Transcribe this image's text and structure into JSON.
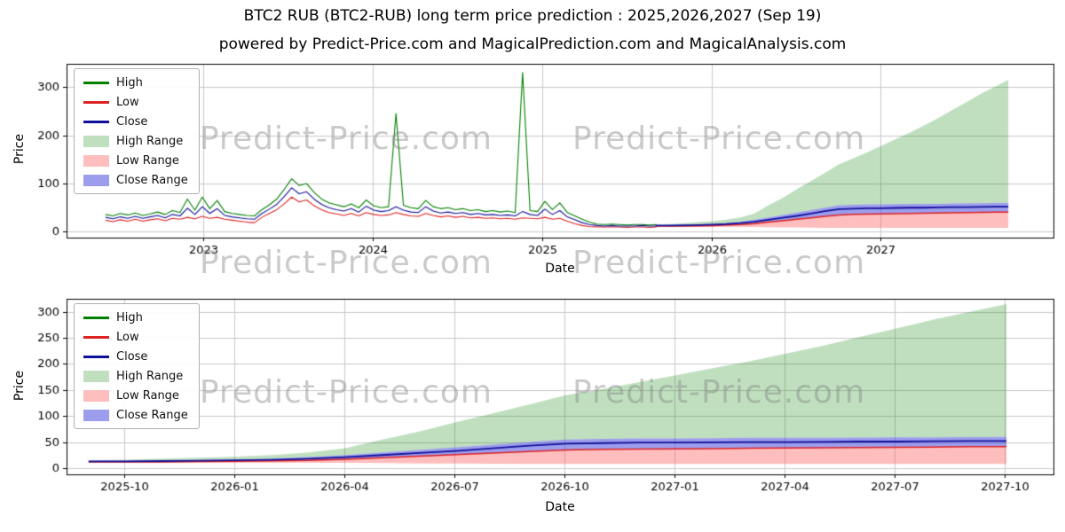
{
  "title": "BTC2 RUB (BTC2-RUB) long term price prediction : 2025,2026,2027 (Sep 19)",
  "subtitle": "powered by Predict-Price.com and MagicalPrediction.com and MagicalAnalysis.com",
  "watermark": {
    "text": "Predict-Price.com"
  },
  "colors": {
    "high_line": "#008000",
    "low_line": "#dd2222",
    "close_line": "#10109b",
    "high_band": "rgba(0,128,0,0.25)",
    "low_band": "rgba(255,70,70,0.35)",
    "close_band": "rgba(60,60,220,0.5)",
    "grid": "#c9c9c9",
    "frame": "#000000"
  },
  "legend": [
    {
      "label": "High",
      "type": "line",
      "color": "#008000"
    },
    {
      "label": "Low",
      "type": "line",
      "color": "#dd2222"
    },
    {
      "label": "Close",
      "type": "line",
      "color": "#10109b"
    },
    {
      "label": "High Range",
      "type": "band",
      "color": "rgba(0,128,0,0.25)"
    },
    {
      "label": "Low Range",
      "type": "band",
      "color": "rgba(255,70,70,0.35)"
    },
    {
      "label": "Close Range",
      "type": "band",
      "color": "rgba(60,60,220,0.5)"
    }
  ],
  "chart_data": {
    "type": "line",
    "series": {
      "historical": {
        "x": {
          "start": 2022.42,
          "step": 0.044,
          "count": 75
        },
        "high": [
          36,
          33,
          38,
          35,
          39,
          34,
          37,
          41,
          36,
          44,
          40,
          68,
          45,
          72,
          48,
          65,
          42,
          38,
          36,
          34,
          33,
          46,
          56,
          68,
          88,
          110,
          96,
          100,
          82,
          68,
          60,
          56,
          52,
          58,
          50,
          66,
          54,
          50,
          52,
          245,
          55,
          50,
          48,
          65,
          52,
          48,
          50,
          46,
          48,
          44,
          46,
          42,
          44,
          41,
          43,
          40,
          330,
          44,
          42,
          63,
          46,
          60,
          40,
          33,
          26,
          20,
          16,
          15,
          16,
          15,
          14,
          15,
          15,
          14,
          15
        ],
        "low": [
          24,
          21,
          25,
          22,
          26,
          22,
          25,
          27,
          23,
          28,
          26,
          30,
          27,
          32,
          28,
          30,
          26,
          24,
          22,
          20,
          19,
          30,
          38,
          46,
          58,
          72,
          62,
          66,
          54,
          46,
          40,
          37,
          34,
          38,
          33,
          40,
          36,
          34,
          35,
          40,
          36,
          33,
          32,
          38,
          34,
          31,
          33,
          30,
          32,
          29,
          30,
          28,
          29,
          27,
          28,
          26,
          29,
          28,
          27,
          30,
          26,
          28,
          22,
          17,
          13,
          11,
          10,
          10,
          10,
          10,
          9,
          10,
          10,
          9,
          10
        ],
        "close": [
          30,
          27,
          31,
          28,
          32,
          28,
          31,
          34,
          29,
          36,
          33,
          49,
          36,
          52,
          38,
          48,
          34,
          31,
          29,
          27,
          26,
          38,
          47,
          57,
          73,
          91,
          79,
          83,
          68,
          57,
          50,
          46,
          43,
          48,
          41,
          53,
          45,
          42,
          44,
          52,
          45,
          41,
          40,
          52,
          43,
          39,
          41,
          38,
          40,
          36,
          38,
          35,
          36,
          34,
          35,
          33,
          42,
          36,
          34,
          47,
          36,
          44,
          31,
          25,
          19,
          15,
          13,
          12,
          13,
          12,
          12,
          12,
          13,
          12,
          12
        ]
      },
      "forecast": {
        "x": {
          "start": 2025.67,
          "step": 0.083333,
          "count": 26
        },
        "high_range_top": [
          15,
          16,
          18,
          20,
          22,
          25,
          30,
          38,
          55,
          70,
          88,
          105,
          122,
          140,
          152,
          165,
          178,
          192,
          205,
          220,
          235,
          252,
          268,
          285,
          300,
          315
        ],
        "close_range_top": [
          14,
          14.5,
          15,
          15.5,
          16.5,
          18,
          21,
          25,
          30,
          35,
          40,
          45,
          50,
          55,
          56,
          57,
          57,
          57.5,
          58,
          58,
          58,
          58.5,
          59,
          59,
          59.5,
          60
        ],
        "close": [
          13,
          13,
          13.5,
          14,
          15,
          16,
          18,
          21,
          25,
          29,
          33,
          38,
          43,
          47,
          48,
          49,
          49,
          49.5,
          50,
          50,
          50.5,
          51,
          51,
          51.5,
          52,
          52
        ],
        "low": [
          12,
          12,
          12,
          12.5,
          13,
          14,
          15,
          17,
          20,
          23,
          26,
          29,
          32,
          35,
          36,
          36.5,
          37,
          37.5,
          38,
          38.5,
          39,
          39.5,
          40,
          40.5,
          41,
          41
        ],
        "low_range_bottom": [
          11,
          10.5,
          10,
          10,
          10,
          10,
          10,
          10,
          9.5,
          9,
          9,
          8.5,
          8,
          8,
          8,
          8,
          8,
          8,
          8,
          8,
          8,
          8,
          8,
          8,
          8,
          8
        ]
      }
    },
    "subplots": [
      {
        "name": "full-history-with-forecast",
        "xlabel": "Date",
        "ylabel": "Price",
        "xlim": [
          2022.19,
          2028.02
        ],
        "ylim": [
          -12,
          348
        ],
        "grid": true,
        "legend_position": "upper left",
        "xticks": [
          {
            "v": 2023,
            "label": "2023"
          },
          {
            "v": 2024,
            "label": "2024"
          },
          {
            "v": 2025,
            "label": "2025"
          },
          {
            "v": 2026,
            "label": "2026"
          },
          {
            "v": 2027,
            "label": "2027"
          }
        ],
        "yticks": [
          {
            "v": 0,
            "label": "0"
          },
          {
            "v": 100,
            "label": "100"
          },
          {
            "v": 200,
            "label": "200"
          },
          {
            "v": 300,
            "label": "300"
          }
        ],
        "show": [
          "historical",
          "forecast"
        ]
      },
      {
        "name": "forecast-detail",
        "xlabel": "Date",
        "ylabel": "Price",
        "xlim": [
          2025.62,
          2027.86
        ],
        "ylim": [
          -12,
          325
        ],
        "grid": true,
        "legend_position": "upper left",
        "xticks": [
          {
            "v": 2025.75,
            "label": "2025-10"
          },
          {
            "v": 2026.0,
            "label": "2026-01"
          },
          {
            "v": 2026.25,
            "label": "2026-04"
          },
          {
            "v": 2026.5,
            "label": "2026-07"
          },
          {
            "v": 2026.75,
            "label": "2026-10"
          },
          {
            "v": 2027.0,
            "label": "2027-01"
          },
          {
            "v": 2027.25,
            "label": "2027-04"
          },
          {
            "v": 2027.5,
            "label": "2027-07"
          },
          {
            "v": 2027.75,
            "label": "2027-10"
          }
        ],
        "yticks": [
          {
            "v": 0,
            "label": "0"
          },
          {
            "v": 50,
            "label": "50"
          },
          {
            "v": 100,
            "label": "100"
          },
          {
            "v": 150,
            "label": "150"
          },
          {
            "v": 200,
            "label": "200"
          },
          {
            "v": 250,
            "label": "250"
          },
          {
            "v": 300,
            "label": "300"
          }
        ],
        "show": [
          "forecast"
        ]
      }
    ]
  }
}
